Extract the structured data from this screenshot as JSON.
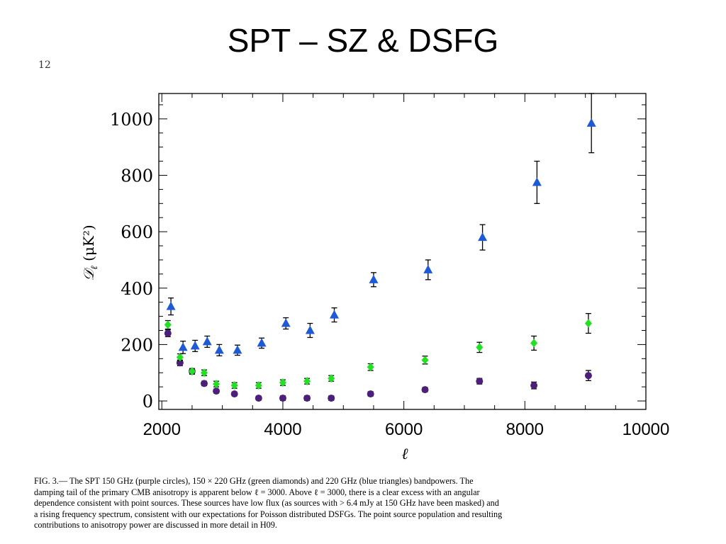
{
  "slide": {
    "title": "SPT – SZ & DSFG",
    "page_number": "12"
  },
  "chart_data": {
    "type": "scatter",
    "xlabel": "ℓ",
    "ylabel_symbol": "𝒟",
    "ylabel_sub": "ℓ",
    "ylabel_units": "(μK²)",
    "xlim": [
      1950,
      10000
    ],
    "ylim": [
      -30,
      1090
    ],
    "x_ticks": [
      2000,
      4000,
      6000,
      8000,
      10000
    ],
    "y_ticks": [
      0,
      200,
      400,
      600,
      800,
      1000
    ],
    "grid": false,
    "series": [
      {
        "name": "150 GHz (purple circles)",
        "marker": "circle",
        "color": "#4b1f7a",
        "points": [
          {
            "x": 2100,
            "y": 240,
            "err": 12
          },
          {
            "x": 2300,
            "y": 135,
            "err": 10
          },
          {
            "x": 2500,
            "y": 105,
            "err": 8
          },
          {
            "x": 2700,
            "y": 62,
            "err": 8
          },
          {
            "x": 2900,
            "y": 35,
            "err": 7
          },
          {
            "x": 3200,
            "y": 25,
            "err": 7
          },
          {
            "x": 3600,
            "y": 10,
            "err": 7
          },
          {
            "x": 4000,
            "y": 10,
            "err": 8
          },
          {
            "x": 4400,
            "y": 10,
            "err": 8
          },
          {
            "x": 4800,
            "y": 10,
            "err": 8
          },
          {
            "x": 5450,
            "y": 25,
            "err": 8
          },
          {
            "x": 6350,
            "y": 40,
            "err": 8
          },
          {
            "x": 7250,
            "y": 70,
            "err": 10
          },
          {
            "x": 8150,
            "y": 55,
            "err": 12
          },
          {
            "x": 9050,
            "y": 90,
            "err": 18
          }
        ]
      },
      {
        "name": "150 × 220 GHz (green diamonds)",
        "marker": "diamond",
        "color": "#22e022",
        "points": [
          {
            "x": 2100,
            "y": 270,
            "err": 15
          },
          {
            "x": 2300,
            "y": 155,
            "err": 12
          },
          {
            "x": 2500,
            "y": 105,
            "err": 10
          },
          {
            "x": 2700,
            "y": 100,
            "err": 10
          },
          {
            "x": 2900,
            "y": 60,
            "err": 10
          },
          {
            "x": 3200,
            "y": 55,
            "err": 10
          },
          {
            "x": 3600,
            "y": 55,
            "err": 10
          },
          {
            "x": 4000,
            "y": 65,
            "err": 10
          },
          {
            "x": 4400,
            "y": 70,
            "err": 10
          },
          {
            "x": 4800,
            "y": 80,
            "err": 10
          },
          {
            "x": 5450,
            "y": 120,
            "err": 12
          },
          {
            "x": 6350,
            "y": 145,
            "err": 14
          },
          {
            "x": 7250,
            "y": 190,
            "err": 18
          },
          {
            "x": 8150,
            "y": 205,
            "err": 25
          },
          {
            "x": 9050,
            "y": 275,
            "err": 35
          }
        ]
      },
      {
        "name": "220 GHz (blue triangles)",
        "marker": "triangle",
        "color": "#1e5ad8",
        "points": [
          {
            "x": 2150,
            "y": 335,
            "err": 30
          },
          {
            "x": 2350,
            "y": 190,
            "err": 22
          },
          {
            "x": 2550,
            "y": 195,
            "err": 20
          },
          {
            "x": 2750,
            "y": 210,
            "err": 20
          },
          {
            "x": 2950,
            "y": 180,
            "err": 20
          },
          {
            "x": 3250,
            "y": 180,
            "err": 18
          },
          {
            "x": 3650,
            "y": 205,
            "err": 18
          },
          {
            "x": 4050,
            "y": 275,
            "err": 20
          },
          {
            "x": 4450,
            "y": 250,
            "err": 25
          },
          {
            "x": 4850,
            "y": 305,
            "err": 25
          },
          {
            "x": 5500,
            "y": 430,
            "err": 25
          },
          {
            "x": 6400,
            "y": 465,
            "err": 35
          },
          {
            "x": 7300,
            "y": 580,
            "err": 45
          },
          {
            "x": 8200,
            "y": 775,
            "err": 75
          },
          {
            "x": 9100,
            "y": 985,
            "err": 105
          }
        ]
      }
    ]
  },
  "caption": {
    "lines": [
      "FIG. 3.— The SPT 150 GHz (purple circles), 150 × 220 GHz (green diamonds) and 220 GHz (blue triangles) bandpowers. The",
      "damping tail of the primary CMB anisotropy is apparent below ℓ = 3000. Above ℓ = 3000, there is a clear excess with an angular",
      "dependence consistent with point sources. These sources have low flux (as sources with > 6.4 mJy at 150 GHz have been masked) and",
      "a rising frequency spectrum, consistent with our expectations for Poisson distributed DSFGs. The point source population and resulting",
      "contributions to anisotropy power are discussed in more detail in H09."
    ]
  }
}
